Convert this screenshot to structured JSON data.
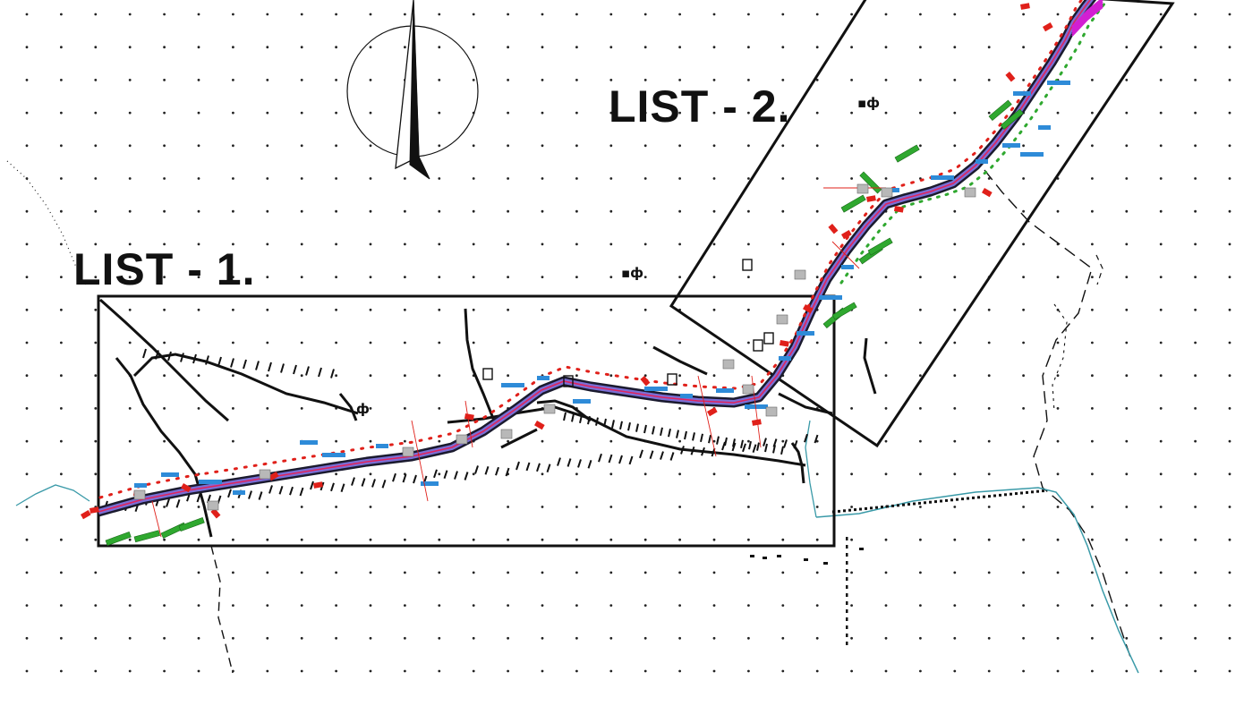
{
  "map": {
    "sheet_labels": [
      "LIST - 1.",
      "LIST - 2."
    ],
    "north_arrow_icon": "north-arrow-icon",
    "symbols": [
      "ф",
      "ф",
      "ф"
    ],
    "colors": {
      "background": "#ffffff",
      "grid": "#222222",
      "frame": "#111111",
      "road": "#1a1a2e",
      "road_centerline": "#e0245e",
      "road_edge": "#7b6fd6",
      "utility_blue": "#2e8bd8",
      "utility_red": "#e0201a",
      "utility_green": "#2fa82f",
      "utility_magenta": "#d21fd2",
      "boundary_dashed": "#111111",
      "water_line": "#3a9aa8"
    }
  }
}
